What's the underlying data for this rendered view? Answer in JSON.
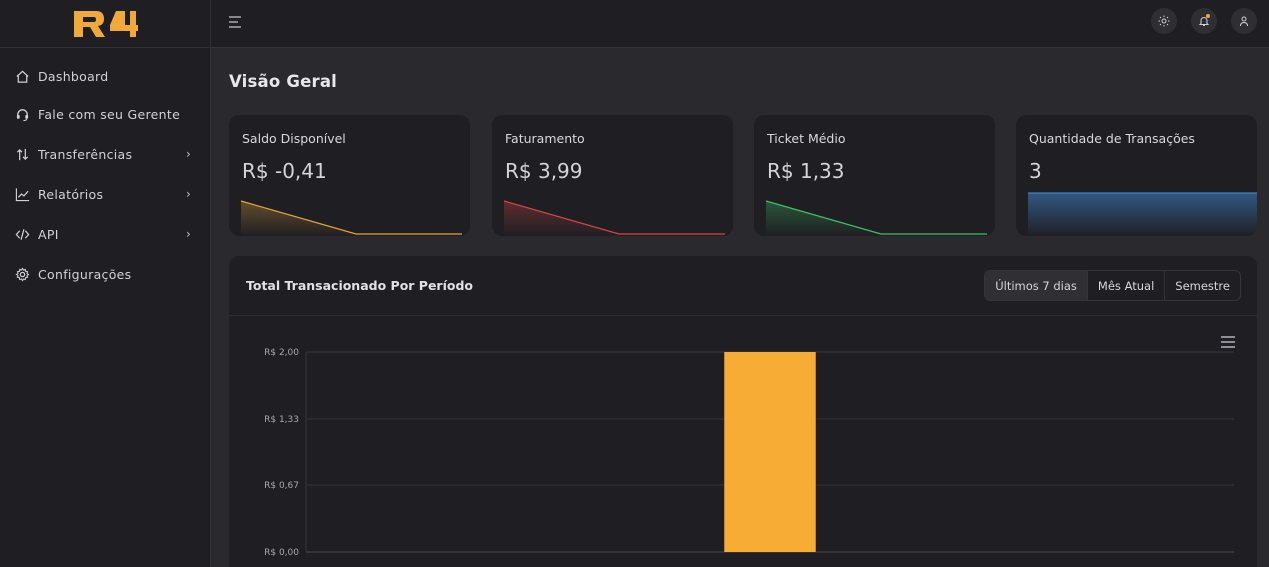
{
  "brand": {
    "logo_text": "R4",
    "accent": "#f2a93b"
  },
  "sidebar": {
    "items": [
      {
        "label": "Dashboard",
        "icon": "home-icon",
        "has_submenu": false
      },
      {
        "label": "Fale com seu Gerente",
        "icon": "headset-icon",
        "has_submenu": false
      },
      {
        "label": "Transferências",
        "icon": "transfer-arrows-icon",
        "has_submenu": true
      },
      {
        "label": "Relatórios",
        "icon": "chart-line-icon",
        "has_submenu": true
      },
      {
        "label": "API",
        "icon": "code-icon",
        "has_submenu": true
      },
      {
        "label": "Configurações",
        "icon": "gear-icon",
        "has_submenu": false
      }
    ]
  },
  "topbar": {
    "icons": [
      "menu-icon",
      "sun-icon",
      "bell-icon",
      "user-icon"
    ]
  },
  "page": {
    "title": "Visão Geral"
  },
  "cards": [
    {
      "title": "Saldo Disponível",
      "value": "R$ -0,41",
      "color": "#e3a33a"
    },
    {
      "title": "Faturamento",
      "value": "R$ 3,99",
      "color": "#d64545"
    },
    {
      "title": "Ticket Médio",
      "value": "R$ 1,33",
      "color": "#3fbf63"
    },
    {
      "title": "Quantidade de Transações",
      "value": "3",
      "color": "#3d7fc2"
    }
  ],
  "panel": {
    "title": "Total Transacionado Por Período",
    "filters": [
      "Últimos 7 dias",
      "Mês Atual",
      "Semestre"
    ],
    "selected_filter": "Últimos 7 dias"
  },
  "chart_data": {
    "type": "bar",
    "y_tick_labels": [
      "R$ 2,00",
      "R$ 1,33",
      "R$ 0,67",
      "R$ 0,00"
    ],
    "y_ticks": [
      2.0,
      1.33,
      0.67,
      0.0
    ],
    "ylim": [
      0,
      2
    ],
    "grid": true,
    "categories_count": 7,
    "values": [
      0,
      0,
      0,
      2.0,
      0,
      0,
      0
    ],
    "color": "#f7ad35"
  }
}
